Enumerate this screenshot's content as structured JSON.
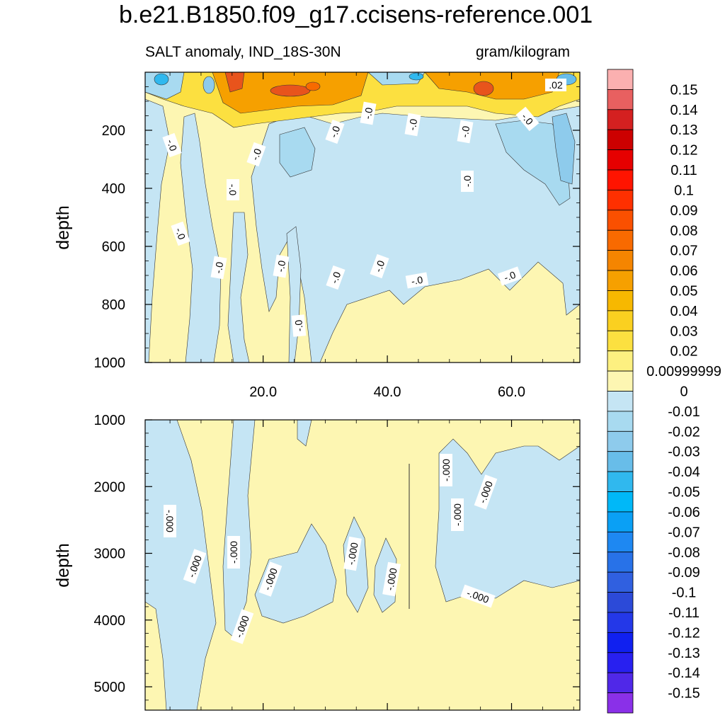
{
  "title": "b.e21.B1850.f09_g17.ccisens-reference.001",
  "subtitle_left": "SALT anomaly, IND_18S-30N",
  "subtitle_right": "gram/kilogram",
  "colors": {
    "positive_light": "#fdf6b2",
    "negative_light": "#c5e5f4",
    "orange": "#f5a000",
    "red_orange": "#e8541c",
    "blue": "#60b5e6"
  },
  "chart_data": [
    {
      "type": "heatmap",
      "panel": "upper",
      "ylabel": "depth",
      "xlabel": "",
      "xlim": [
        1,
        71
      ],
      "ylim": [
        1000,
        0
      ],
      "x_ticks": [
        "20.0",
        "40.0",
        "60.0"
      ],
      "x_tick_values": [
        20,
        40,
        60
      ],
      "y_ticks": [
        "200",
        "400",
        "600",
        "800",
        "1000"
      ],
      "y_tick_values": [
        200,
        400,
        600,
        800,
        1000
      ],
      "contour_labels": [
        ".02",
        "-.0",
        "-.0",
        "-.0",
        "-.0",
        "-.0",
        "-.0",
        "-.0",
        "-.0",
        "-.0",
        "-.0",
        "-.0",
        "-.0",
        "-.0",
        "-.0",
        "-.0",
        "-.0",
        "-.0"
      ]
    },
    {
      "type": "heatmap",
      "panel": "lower",
      "ylabel": "depth",
      "xlabel": "",
      "xlim": [
        1,
        71
      ],
      "ylim": [
        5350,
        1000
      ],
      "y_ticks": [
        "1000",
        "2000",
        "3000",
        "4000",
        "5000"
      ],
      "y_tick_values": [
        1000,
        2000,
        3000,
        4000,
        5000
      ],
      "contour_labels": [
        "-.000",
        "-.000",
        "-.000",
        "-.000",
        "-.000",
        "-.000",
        "-.000",
        "-.000",
        "-.000",
        "-.000",
        "-.000"
      ]
    },
    {
      "type": "colorbar",
      "levels": [
        "0.15",
        "0.14",
        "0.13",
        "0.12",
        "0.11",
        "0.1",
        "0.09",
        "0.08",
        "0.07",
        "0.06",
        "0.05",
        "0.04",
        "0.03",
        "0.02",
        "0.00999999",
        "0",
        "-0.01",
        "-0.02",
        "-0.03",
        "-0.04",
        "-0.05",
        "-0.06",
        "-0.07",
        "-0.08",
        "-0.09",
        "-0.1",
        "-0.11",
        "-0.12",
        "-0.13",
        "-0.14",
        "-0.15"
      ],
      "colors": [
        "#fbb0b0",
        "#e86060",
        "#d42020",
        "#cc0000",
        "#e60000",
        "#ff1400",
        "#ff3000",
        "#fa5000",
        "#f86a00",
        "#f58500",
        "#f6a000",
        "#f7b800",
        "#fad020",
        "#fce040",
        "#fdf080",
        "#fdf6b2",
        "#c5e5f4",
        "#a8daf0",
        "#8ecbec",
        "#68bde9",
        "#30b8ee",
        "#00b8f8",
        "#0aa0f5",
        "#1e88f2",
        "#2872e8",
        "#3060e0",
        "#2c4ad8",
        "#2438e8",
        "#1020f0",
        "#2820f0",
        "#5028e8",
        "#8a30e8"
      ]
    }
  ]
}
